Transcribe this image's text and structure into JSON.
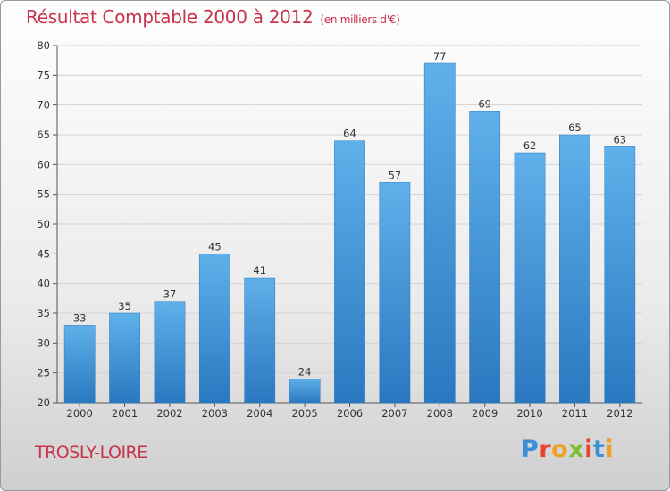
{
  "chart_data": {
    "type": "bar",
    "title": "Résultat Comptable 2000 à 2012",
    "subtitle": "(en milliers d'€)",
    "categories": [
      "2000",
      "2001",
      "2002",
      "2003",
      "2004",
      "2005",
      "2006",
      "2007",
      "2008",
      "2009",
      "2010",
      "2011",
      "2012"
    ],
    "values": [
      33,
      35,
      37,
      45,
      41,
      24,
      64,
      57,
      77,
      69,
      62,
      65,
      63
    ],
    "ylim": [
      20,
      80
    ],
    "yticks": [
      20,
      25,
      30,
      35,
      40,
      45,
      50,
      55,
      60,
      65,
      70,
      75,
      80
    ],
    "grid": true,
    "data_labels": true,
    "bar_color": "#3a8fd6"
  },
  "footer": {
    "commune": "TROSLY-LOIRE",
    "logo_letters": [
      "P",
      "r",
      "o",
      "x",
      "i",
      "t",
      "i"
    ]
  },
  "colors": {
    "title": "#c8324a",
    "bar_top": "#5fb0ea",
    "bar_bottom": "#2a78c0"
  }
}
